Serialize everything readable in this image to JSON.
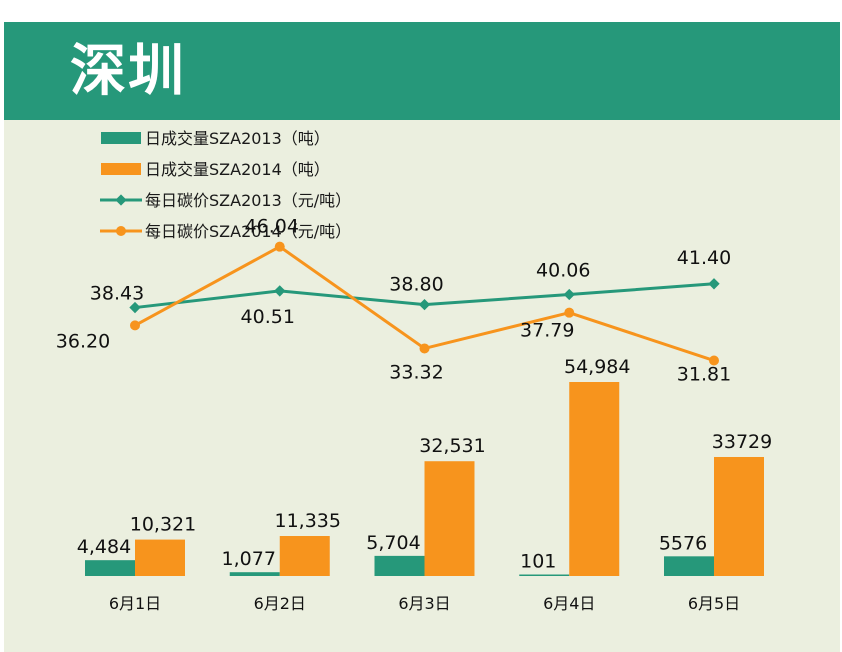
{
  "header": {
    "title": "深圳"
  },
  "colors": {
    "green": "#26987a",
    "orange": "#f7941d",
    "panel_bg": "#ebefdf",
    "header_bg": "#26987a"
  },
  "chart_data": {
    "type": "bar+line",
    "title": "",
    "categories": [
      "6月1日",
      "6月2日",
      "6月3日",
      "6月4日",
      "6月5日"
    ],
    "bar_series": [
      {
        "name": "日成交量SZA2013（吨）",
        "color": "#26987a",
        "values": [
          4484,
          1077,
          5704,
          101,
          5576
        ],
        "labels": [
          "4,484",
          "1,077",
          "5,704",
          "101",
          "5576"
        ]
      },
      {
        "name": "日成交量SZA2014（吨）",
        "color": "#f7941d",
        "values": [
          10321,
          11335,
          32531,
          54984,
          33729
        ],
        "labels": [
          "10,321",
          "11,335",
          "32,531",
          "54,984",
          "33729"
        ]
      }
    ],
    "line_series": [
      {
        "name": "每日碳价SZA2013（元/吨）",
        "color": "#26987a",
        "marker": "diamond",
        "values": [
          38.43,
          40.51,
          38.8,
          40.06,
          41.4
        ],
        "labels": [
          "38.43",
          "40.51",
          "38.80",
          "40.06",
          "41.40"
        ]
      },
      {
        "name": "每日碳价SZA2014（元/吨）",
        "color": "#f7941d",
        "marker": "circle",
        "values": [
          36.2,
          46.04,
          33.32,
          37.79,
          31.81
        ],
        "labels": [
          "36.20",
          "46.04",
          "33.32",
          "37.79",
          "31.81"
        ]
      }
    ],
    "legend_position": "top-left",
    "grid": false
  }
}
